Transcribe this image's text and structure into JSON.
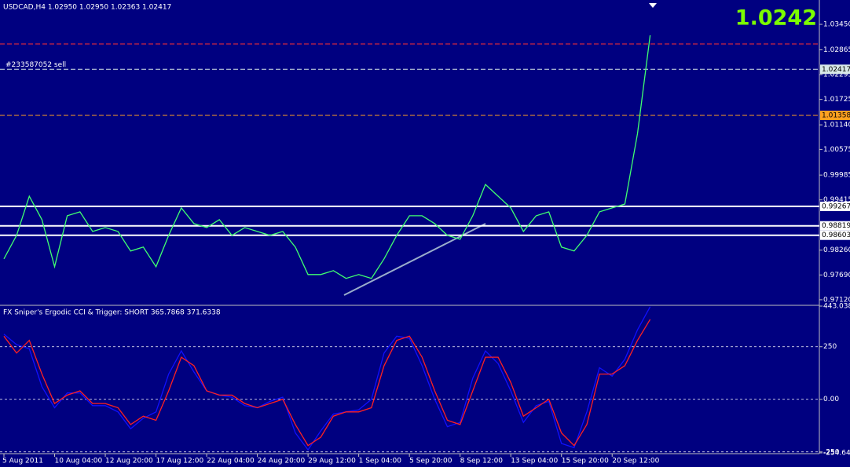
{
  "header": {
    "title": "USDCAD,H4  1.02950 1.02950 1.02363 1.02417",
    "last_price": "1.0242"
  },
  "chart_data": [
    {
      "type": "line",
      "categories": [
        "5 Aug 2011",
        null,
        null,
        null,
        "10 Aug 04:00",
        null,
        null,
        null,
        "12 Aug 20:00",
        null,
        null,
        null,
        "17 Aug 12:00",
        null,
        null,
        null,
        "22 Aug 04:00",
        null,
        null,
        null,
        "24 Aug 20:00",
        null,
        null,
        null,
        "29 Aug 12:00",
        null,
        null,
        null,
        "1 Sep 04:00",
        null,
        null,
        null,
        "5 Sep 20:00",
        null,
        null,
        null,
        "8 Sep 12:00",
        null,
        null,
        null,
        "13 Sep 04:00",
        null,
        null,
        null,
        "15 Sep 20:00",
        null,
        null,
        null,
        "20 Sep 12:00",
        null,
        null,
        null
      ],
      "values": [
        0.9806,
        0.986,
        0.995,
        0.9896,
        0.9788,
        0.9905,
        0.9914,
        0.9869,
        0.9878,
        0.9869,
        0.9824,
        0.9833,
        0.9788,
        0.986,
        0.9923,
        0.9887,
        0.9878,
        0.9896,
        0.986,
        0.9878,
        0.9869,
        0.986,
        0.9869,
        0.9833,
        0.977,
        0.977,
        0.9779,
        0.9761,
        0.977,
        0.9761,
        0.9806,
        0.986,
        0.9905,
        0.9905,
        0.9887,
        0.986,
        0.9851,
        0.9905,
        0.9977,
        0.995,
        0.9923,
        0.9869,
        0.9905,
        0.9914,
        0.9833,
        0.9824,
        0.986,
        0.9914,
        0.9923,
        0.9932,
        1.0094,
        1.032
      ],
      "color": "#40ff70",
      "ylim": [
        0.9701,
        1.0401
      ],
      "yticks": [
        {
          "value": 1.0345,
          "label": "1.03450"
        },
        {
          "value": 1.02865,
          "label": "1.02865"
        },
        {
          "value": 1.02295,
          "label": "1.02295"
        },
        {
          "value": 1.01725,
          "label": "1.01725"
        },
        {
          "value": 1.0114,
          "label": "1.01140"
        },
        {
          "value": 1.00575,
          "label": "1.00575"
        },
        {
          "value": 0.99985,
          "label": "0.99985"
        },
        {
          "value": 0.99415,
          "label": "0.99415"
        },
        {
          "value": 0.9826,
          "label": "0.98260"
        },
        {
          "value": 0.9769,
          "label": "0.97690"
        },
        {
          "value": 0.9712,
          "label": "0.97120"
        }
      ],
      "levels": [
        {
          "value": 1.03,
          "color": "#ff3030",
          "style": "dashed"
        },
        {
          "value": 1.02417,
          "label": "1.02417",
          "color": "#d8e8e8",
          "style": "dashed"
        },
        {
          "value": 1.01358,
          "label": "1.01358",
          "color": "#ffa020",
          "style": "dashed"
        },
        {
          "value": 0.99267,
          "label": "0.99267",
          "color": "#ffffff",
          "style": "solid"
        },
        {
          "value": 0.98819,
          "label": "0.98819",
          "color": "#ffffff",
          "style": "solid"
        },
        {
          "value": 0.98603,
          "label": "0.98603",
          "color": "#ffffff",
          "style": "solid"
        }
      ],
      "order_label": "#233587052 sell"
    },
    {
      "type": "line",
      "title": "FX Sniper's Ergodic CCI & Trigger: SHORT 365.7868 371.6338",
      "series": [
        {
          "color": "#1010ff",
          "values": [
            310,
            260,
            240,
            60,
            -40,
            30,
            30,
            -30,
            -30,
            -60,
            -140,
            -90,
            -60,
            120,
            230,
            130,
            40,
            20,
            10,
            -30,
            -40,
            -10,
            10,
            -160,
            -240,
            -150,
            -70,
            -60,
            -50,
            0,
            220,
            300,
            290,
            160,
            0,
            -130,
            -110,
            100,
            230,
            170,
            40,
            -110,
            -30,
            -10,
            -210,
            -230,
            -60,
            150,
            110,
            190,
            330,
            440
          ]
        },
        {
          "color": "#ff2020",
          "values": [
            300,
            220,
            280,
            120,
            -20,
            20,
            40,
            -20,
            -20,
            -40,
            -120,
            -80,
            -100,
            40,
            200,
            160,
            40,
            20,
            20,
            -20,
            -40,
            -20,
            0,
            -120,
            -220,
            -180,
            -80,
            -60,
            -60,
            -40,
            160,
            280,
            300,
            200,
            40,
            -100,
            -120,
            40,
            200,
            200,
            80,
            -80,
            -40,
            0,
            -160,
            -220,
            -120,
            120,
            120,
            160,
            280,
            380
          ]
        }
      ],
      "ylim": [
        -254.649,
        443.0385
      ],
      "yticks": [
        443.0385,
        250,
        {
          "value": 0,
          "label": "0.00"
        },
        -250,
        -254.649
      ]
    }
  ]
}
